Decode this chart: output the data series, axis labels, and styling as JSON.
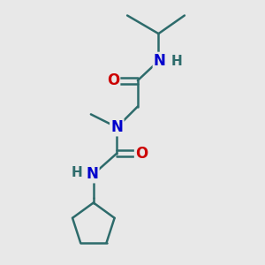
{
  "bg_color": "#e8e8e8",
  "N_color": "#0000cc",
  "O_color": "#cc0000",
  "C_color": "#2d6b6b",
  "bond_color": "#2d6b6b",
  "lw": 1.8,
  "figsize": [
    3.0,
    3.0
  ],
  "dpi": 100,
  "xlim": [
    0,
    10
  ],
  "ylim": [
    0,
    10
  ]
}
